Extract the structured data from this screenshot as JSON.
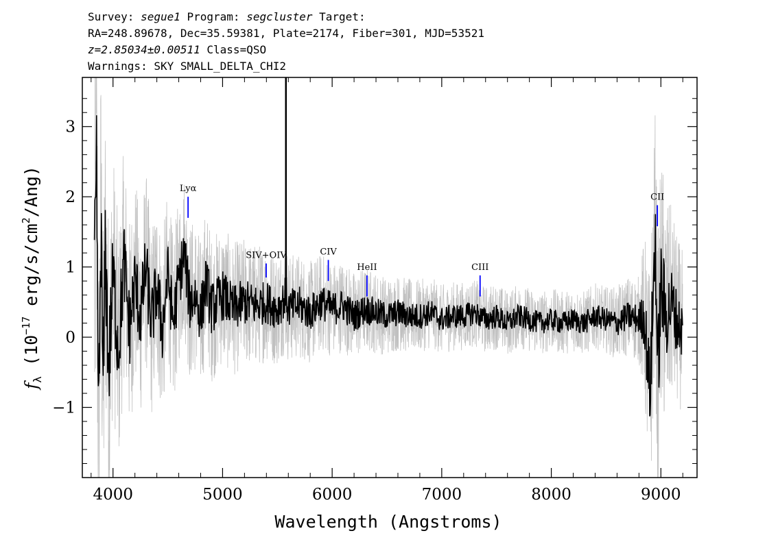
{
  "header": {
    "line1": {
      "survey_label": "Survey: ",
      "survey": "segue1",
      "program_label": " Program: ",
      "program": "segcluster",
      "target_label": " Target:"
    },
    "line2": "RA=248.89678, Dec=35.59381, Plate=2174, Fiber=301, MJD=53521",
    "line3": {
      "redshift": "z=2.85034±0.00511",
      "class": " Class=QSO"
    },
    "line4": "Warnings: SKY SMALL_DELTA_CHI2"
  },
  "colors": {
    "flux": "#000000",
    "error_band": "#c0c0c0",
    "line_marker": "#0000ff",
    "axes": "#000000"
  },
  "chart_data": {
    "type": "line",
    "title": "",
    "xlabel": "Wavelength (Angstroms)",
    "ylabel": "f_λ (10^-17 erg/s/cm^2/Ang)",
    "ylabel_parts": {
      "f": "f",
      "lambda": "λ",
      "open": " (10",
      "exp1": "−17",
      "mid": " erg/s/cm",
      "exp2": "2",
      "close": "/Ang)"
    },
    "xlim": [
      3720,
      9330
    ],
    "ylim": [
      -2.0,
      3.7
    ],
    "x_ticks": [
      4000,
      5000,
      6000,
      7000,
      8000,
      9000
    ],
    "x_tick_labels": [
      "4000",
      "5000",
      "6000",
      "7000",
      "8000",
      "9000"
    ],
    "y_ticks": [
      -1,
      0,
      1,
      2,
      3
    ],
    "y_tick_labels": [
      "−1",
      "0",
      "1",
      "2",
      "3"
    ],
    "grid": false,
    "legend": "none",
    "series": [
      {
        "role": "flux",
        "x": [
          3830,
          3850,
          3870,
          3890,
          3910,
          3930,
          3960,
          4000,
          4050,
          4100,
          4150,
          4200,
          4250,
          4300,
          4350,
          4400,
          4450,
          4500,
          4550,
          4600,
          4650,
          4700,
          4750,
          4800,
          4850,
          4900,
          4950,
          5000,
          5100,
          5200,
          5300,
          5400,
          5500,
          5580,
          5600,
          5700,
          5800,
          5900,
          6000,
          6100,
          6200,
          6300,
          6400,
          6500,
          6600,
          6700,
          6800,
          6900,
          7000,
          7100,
          7200,
          7300,
          7400,
          7500,
          7600,
          7700,
          7800,
          7900,
          8000,
          8100,
          8200,
          8300,
          8400,
          8500,
          8600,
          8700,
          8800,
          8850,
          8900,
          8930,
          8950,
          8970,
          9000,
          9050,
          9100,
          9150,
          9200
        ],
        "values": [
          0.6,
          2.1,
          -1.4,
          1.6,
          -0.9,
          1.3,
          -0.5,
          0.9,
          -0.2,
          1.1,
          0.1,
          0.8,
          0.3,
          1.0,
          0.2,
          0.7,
          0.1,
          0.9,
          0.2,
          0.8,
          1.2,
          0.5,
          0.6,
          0.3,
          0.8,
          0.4,
          0.5,
          0.6,
          0.4,
          0.5,
          0.45,
          0.5,
          0.4,
          0.6,
          0.4,
          0.45,
          0.35,
          0.5,
          0.4,
          0.45,
          0.3,
          0.4,
          0.35,
          0.3,
          0.35,
          0.3,
          0.3,
          0.35,
          0.25,
          0.3,
          0.3,
          0.35,
          0.25,
          0.3,
          0.2,
          0.3,
          0.25,
          0.2,
          0.25,
          0.2,
          0.25,
          0.2,
          0.3,
          0.25,
          0.2,
          0.3,
          0.25,
          0.3,
          -0.8,
          0.6,
          1.5,
          -0.6,
          0.7,
          0.3,
          0.5,
          0.2,
          0.1
        ]
      },
      {
        "role": "error",
        "x": [
          3830,
          3900,
          4000,
          4200,
          4500,
          5000,
          5500,
          6000,
          6500,
          7000,
          7500,
          8000,
          8500,
          8800,
          8900,
          9000,
          9100,
          9200
        ],
        "values": [
          2.6,
          2.0,
          1.5,
          1.2,
          1.0,
          0.8,
          0.65,
          0.55,
          0.45,
          0.4,
          0.38,
          0.36,
          0.38,
          0.5,
          1.4,
          1.6,
          1.1,
          0.9
        ]
      }
    ],
    "sky_spike": {
      "x": 5578,
      "value": 3.7
    },
    "annotations": [
      {
        "label": "Lyα",
        "x": 4685,
        "y_low": 1.7,
        "y_high": 2.0
      },
      {
        "label": "SIV+OIV",
        "x": 5398,
        "y_low": 0.85,
        "y_high": 1.05
      },
      {
        "label": "CIV",
        "x": 5965,
        "y_low": 0.8,
        "y_high": 1.1
      },
      {
        "label": "HeII",
        "x": 6318,
        "y_low": 0.58,
        "y_high": 0.88
      },
      {
        "label": "CIII",
        "x": 7350,
        "y_low": 0.58,
        "y_high": 0.88
      },
      {
        "label": "CII",
        "x": 8968,
        "y_low": 1.58,
        "y_high": 1.88
      }
    ]
  }
}
